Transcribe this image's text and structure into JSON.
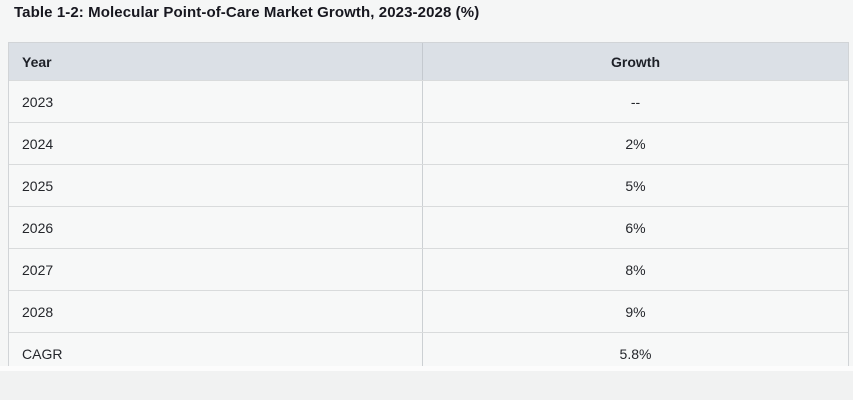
{
  "title": "Table 1-2: Molecular Point-of-Care Market Growth, 2023-2028 (%)",
  "table": {
    "headers": [
      "Year",
      "Growth"
    ],
    "rows": [
      {
        "year": "2023",
        "growth": "--"
      },
      {
        "year": "2024",
        "growth": "2%"
      },
      {
        "year": "2025",
        "growth": "5%"
      },
      {
        "year": "2026",
        "growth": "6%"
      },
      {
        "year": "2027",
        "growth": "8%"
      },
      {
        "year": "2028",
        "growth": "9%"
      },
      {
        "year": "CAGR",
        "growth": "5.8%"
      }
    ]
  },
  "chart_data": {
    "type": "table",
    "title": "Table 1-2: Molecular Point-of-Care Market Growth, 2023-2028 (%)",
    "columns": [
      "Year",
      "Growth"
    ],
    "categories": [
      "2023",
      "2024",
      "2025",
      "2026",
      "2027",
      "2028",
      "CAGR"
    ],
    "values": [
      null,
      2,
      5,
      6,
      8,
      9,
      5.8
    ],
    "value_labels": [
      "--",
      "2%",
      "5%",
      "6%",
      "8%",
      "9%",
      "5.8%"
    ]
  },
  "colors": {
    "page_bg": "#f5f6f6",
    "header_bg": "#dbe0e6",
    "row_bg": "#f7f8f8",
    "footer_band_bg": "#f1f2f2",
    "divider": "#d9dbdc",
    "text": "#24262b",
    "title_text": "#17171f"
  }
}
